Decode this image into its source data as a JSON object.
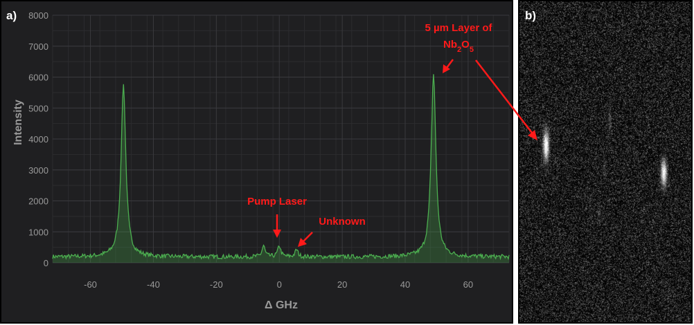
{
  "panel_a": {
    "tag": "a)"
  },
  "panel_b": {
    "tag": "b)"
  },
  "chart_data": {
    "type": "line",
    "title": "",
    "xlabel": "Δ GHz",
    "ylabel": "Intensity",
    "xlim": [
      -72,
      73
    ],
    "ylim": [
      0,
      8000
    ],
    "grid": true,
    "x_ticks": [
      -60,
      -40,
      -20,
      0,
      20,
      40,
      60
    ],
    "y_ticks": [
      0,
      1000,
      2000,
      3000,
      4000,
      5000,
      6000,
      7000,
      8000
    ],
    "baseline": 190,
    "series": [
      {
        "color": "#4caf50",
        "peaks": [
          {
            "x": -49.5,
            "y": 5750
          },
          {
            "x": 49.0,
            "y": 6100
          },
          {
            "x": 0.0,
            "y": 550
          },
          {
            "x": -5.0,
            "y": 550
          },
          {
            "x": 5.5,
            "y": 420
          }
        ]
      }
    ],
    "annotations": [
      {
        "text": "Pump Laser",
        "x": 0.0,
        "y": 2000,
        "color": "#ff1a1a"
      },
      {
        "text": "Unknown",
        "x": 16.5,
        "y": 1320,
        "color": "#ff1a1a"
      },
      {
        "text": "5 µm Layer of",
        "x": 49.5,
        "y": 7650,
        "color": "#ff1a1a"
      },
      {
        "text": "Nb2O5",
        "x": 49.5,
        "y": 7100,
        "color": "#ff1a1a"
      }
    ]
  }
}
